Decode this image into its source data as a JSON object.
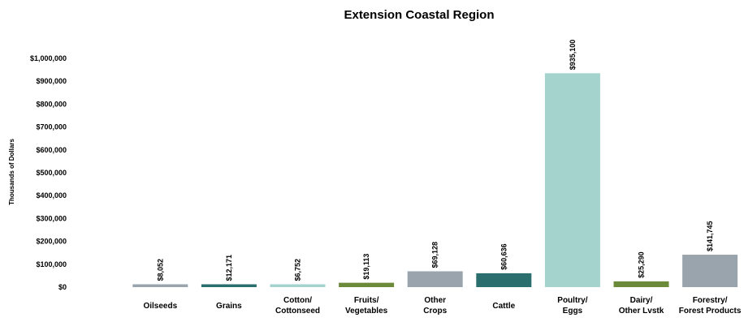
{
  "chart_data": {
    "type": "bar",
    "title": "Extension Coastal Region",
    "xlabel": "",
    "ylabel": "Thousands  of Dollars",
    "ylim": [
      0,
      1000000
    ],
    "yticks": [
      0,
      100000,
      200000,
      300000,
      400000,
      500000,
      600000,
      700000,
      800000,
      900000,
      1000000
    ],
    "ytick_labels": [
      "$0",
      "$100,000",
      "$200,000",
      "$300,000",
      "$400,000",
      "$500,000",
      "$600,000",
      "$700,000",
      "$800,000",
      "$900,000",
      "$1,000,000"
    ],
    "grid": false,
    "categories": [
      [
        "Oilseeds"
      ],
      [
        "Grains"
      ],
      [
        "Cotton/",
        "Cottonseed"
      ],
      [
        "Fruits/",
        "Vegetables"
      ],
      [
        "Other",
        "Crops"
      ],
      [
        "Cattle"
      ],
      [
        "Poultry/",
        "Eggs"
      ],
      [
        "Dairy/",
        "Other Lvstk"
      ],
      [
        "Forestry/",
        "Forest Products"
      ]
    ],
    "values": [
      8052,
      12171,
      6752,
      19113,
      69128,
      60636,
      935100,
      25290,
      141745
    ],
    "data_labels": [
      "$8,052",
      "$12,171",
      "$6,752",
      "$19,113",
      "$69,128",
      "$60,636",
      "$935,100",
      "$25,290",
      "$141,745"
    ],
    "colors": [
      "#9aa4ad",
      "#2a6e6e",
      "#a3d3cc",
      "#6b8a3a",
      "#9aa4ad",
      "#2a6e6e",
      "#a3d3cc",
      "#6b8a3a",
      "#9aa4ad"
    ]
  }
}
